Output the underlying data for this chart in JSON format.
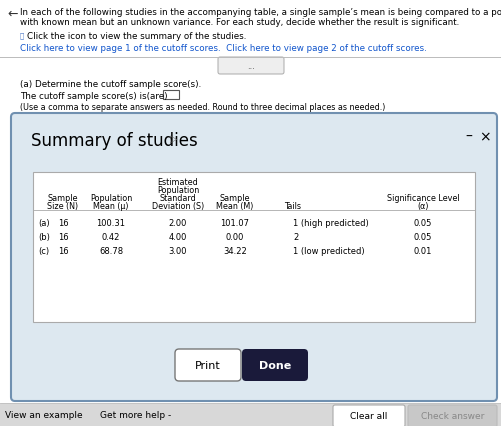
{
  "main_bg": "#f5f5f5",
  "title_line1": "In each of the following studies in the accompanying table, a single sample’s mean is being compared to a population",
  "title_line2": "with known mean but an unknown variance. For each study, decide whether the result is significant.",
  "icon_text": "Click the icon to view the summary of the studies.",
  "link_text1": "Click here to view page 1 of the cutoff scores.",
  "link_text2": "Click here to view page 2 of the cutoff scores.",
  "part_a_label": "(a) Determine the cutoff sample score(s).",
  "cutoff_label": "The cutoff sample score(s) is(are)",
  "note_text": "(Use a comma to separate answers as needed. Round to three decimal places as needed.)",
  "summary_title": "Summary of studies",
  "rows": [
    [
      "(a)",
      "16",
      "100.31",
      "2.00",
      "101.07",
      "1 (high predicted)",
      "0.05"
    ],
    [
      "(b)",
      "16",
      "0.42",
      "4.00",
      "0.00",
      "2",
      "0.05"
    ],
    [
      "(c)",
      "16",
      "68.78",
      "3.00",
      "34.22",
      "1 (low predicted)",
      "0.01"
    ]
  ],
  "dialog_bg": "#dde8f0",
  "dialog_border": "#7090b0",
  "table_bg": "#ffffff",
  "done_btn_color": "#1a1a3a",
  "done_btn_text": "#ffffff",
  "bottom_bar_bg": "#d8d8d8",
  "link_color": "#1155cc",
  "check_answer_color": "#c8c8c8",
  "top_bg": "#ffffff"
}
